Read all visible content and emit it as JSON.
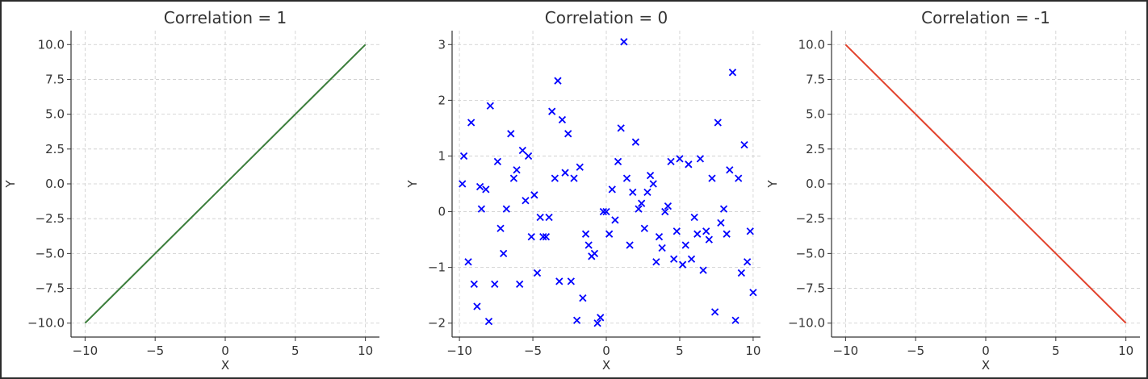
{
  "chart_data": [
    {
      "type": "line",
      "title": "Correlation = 1",
      "xlabel": "X",
      "ylabel": "Y",
      "xlim": [
        -11,
        11
      ],
      "ylim": [
        -11,
        11
      ],
      "xticks": [
        -10,
        -5,
        0,
        5,
        10
      ],
      "xtick_labels": [
        "−10",
        "−5",
        "0",
        "5",
        "10"
      ],
      "yticks": [
        -10,
        -7.5,
        -5,
        -2.5,
        0,
        2.5,
        5,
        7.5,
        10
      ],
      "ytick_labels": [
        "−10.0",
        "−7.5",
        "−5.0",
        "−2.5",
        "0.0",
        "2.5",
        "5.0",
        "7.5",
        "10.0"
      ],
      "grid": true,
      "color": "#3a7d3a",
      "series": [
        {
          "x": [
            -10,
            10
          ],
          "y": [
            -10,
            10
          ]
        }
      ]
    },
    {
      "type": "scatter",
      "title": "Correlation = 0",
      "xlabel": "X",
      "ylabel": "Y",
      "xlim": [
        -10.5,
        10.5
      ],
      "ylim": [
        -2.25,
        3.25
      ],
      "xticks": [
        -10,
        -5,
        0,
        5,
        10
      ],
      "xtick_labels": [
        "−10",
        "−5",
        "0",
        "5",
        "10"
      ],
      "yticks": [
        -2,
        -1,
        0,
        1,
        2,
        3
      ],
      "ytick_labels": [
        "−2",
        "−1",
        "0",
        "1",
        "2",
        "3"
      ],
      "grid": true,
      "marker": "x",
      "color": "#0000ff",
      "series": [
        {
          "x": [
            -9.8,
            -9.7,
            -9.4,
            -9.2,
            -9,
            -8.8,
            -8.6,
            -8.5,
            -8.2,
            -8,
            -7.9,
            -7.6,
            -7.4,
            -7.2,
            -7,
            -6.8,
            -6.5,
            -6.3,
            -6.1,
            -5.9,
            -5.7,
            -5.5,
            -5.3,
            -5.1,
            -4.9,
            -4.7,
            -4.5,
            -4.3,
            -4.1,
            -3.9,
            -3.7,
            -3.5,
            -3.3,
            -3.2,
            -3,
            -2.8,
            -2.6,
            -2.4,
            -2.2,
            -2,
            -1.8,
            -1.6,
            -1.4,
            -1.2,
            -1,
            -0.8,
            -0.6,
            -0.4,
            -0.2,
            0,
            0.2,
            0.4,
            0.6,
            0.8,
            1,
            1.2,
            1.4,
            1.6,
            1.8,
            2,
            2.2,
            2.4,
            2.6,
            2.8,
            3,
            3.2,
            3.4,
            3.6,
            3.8,
            4,
            4.2,
            4.4,
            4.6,
            4.8,
            5,
            5.2,
            5.4,
            5.6,
            5.8,
            6,
            6.2,
            6.4,
            6.6,
            6.8,
            7,
            7.2,
            7.4,
            7.6,
            7.8,
            8,
            8.2,
            8.4,
            8.6,
            8.8,
            9,
            9.2,
            9.4,
            9.6,
            9.8,
            10
          ],
          "y": [
            0.5,
            1.0,
            -0.9,
            1.6,
            -1.3,
            -1.7,
            0.45,
            0.05,
            0.4,
            -1.97,
            1.9,
            -1.3,
            0.9,
            -0.3,
            -0.75,
            0.05,
            1.4,
            0.6,
            0.75,
            -1.3,
            1.1,
            0.2,
            1.0,
            -0.45,
            0.3,
            -1.1,
            -0.1,
            -0.45,
            -0.45,
            -0.1,
            1.8,
            0.6,
            2.35,
            -1.25,
            1.65,
            0.7,
            1.4,
            -1.25,
            0.6,
            -1.95,
            0.8,
            -1.55,
            -0.4,
            -0.6,
            -0.8,
            -0.75,
            -2.0,
            -1.9,
            0.0,
            0.0,
            -0.4,
            0.4,
            -0.15,
            0.9,
            1.5,
            3.05,
            0.6,
            -0.6,
            0.35,
            1.25,
            0.05,
            0.15,
            -0.3,
            0.35,
            0.65,
            0.5,
            -0.9,
            -0.45,
            -0.65,
            0.0,
            0.1,
            0.9,
            -0.85,
            -0.35,
            0.95,
            -0.95,
            -0.6,
            0.85,
            -0.85,
            -0.1,
            -0.4,
            0.95,
            -1.05,
            -0.35,
            -0.5,
            0.6,
            -1.8,
            1.6,
            -0.2,
            0.05,
            -0.4,
            0.75,
            2.5,
            -1.95,
            0.6,
            -1.1,
            1.2,
            -0.9,
            -0.35,
            -1.45
          ]
        }
      ]
    },
    {
      "type": "line",
      "title": "Correlation = -1",
      "xlabel": "X",
      "ylabel": "Y",
      "xlim": [
        -11,
        11
      ],
      "ylim": [
        -11,
        11
      ],
      "xticks": [
        -10,
        -5,
        0,
        5,
        10
      ],
      "xtick_labels": [
        "−10",
        "−5",
        "0",
        "5",
        "10"
      ],
      "yticks": [
        -10,
        -7.5,
        -5,
        -2.5,
        0,
        2.5,
        5,
        7.5,
        10
      ],
      "ytick_labels": [
        "−10.0",
        "−7.5",
        "−5.0",
        "−2.5",
        "0.0",
        "2.5",
        "5.0",
        "7.5",
        "10.0"
      ],
      "grid": true,
      "color": "#e2412b",
      "series": [
        {
          "x": [
            -10,
            10
          ],
          "y": [
            10,
            -10
          ]
        }
      ]
    }
  ]
}
